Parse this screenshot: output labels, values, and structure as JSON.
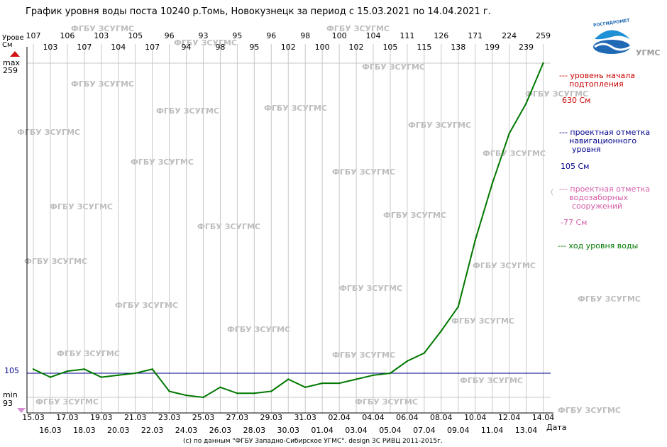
{
  "header": {
    "title": "График уровня воды поста 10240 р.Томь, Новокузнецк за период с 15.03.2021 по 14.04.2021 г."
  },
  "y_axis": {
    "title_line1": "Урове",
    "title_line2": "Cм",
    "max_label": "max",
    "max_value": "259",
    "min_label": "min",
    "min_value": "93",
    "ref_value": "105",
    "max_marker_color": "#d11414",
    "min_marker_color": "#d48fd4"
  },
  "x_axis": {
    "label": "Дата"
  },
  "logo": {
    "name": "РОСГИДРОМЕТ",
    "org": "УГМС",
    "colors": [
      "#1f69b5",
      "#1f8fd6"
    ]
  },
  "legend": {
    "flood_text_1": "--- уровень начала",
    "flood_text_2": "подтопления",
    "flood_value": "630 См",
    "flood_color": "#c80000",
    "nav_text_1": "--- проектная отметка",
    "nav_text_2": "навигационного",
    "nav_text_3": "уровня",
    "nav_value": "105 См",
    "nav_color": "#00008b",
    "intake_marker": "(",
    "intake_text_1": "--- проектная отметка",
    "intake_text_2": "водозаборных",
    "intake_text_3": "сооружений",
    "intake_value": "-77 См",
    "intake_color": "#d65fa8",
    "level_text": "--- ход уровня воды",
    "level_color": "#007800"
  },
  "watermark": {
    "text": "ФГБУ ЗСУГМС"
  },
  "footer": {
    "credit": "(с) по данным \"ФГБУ Западно-Сибирское УГМС\". design ЗС РИВЦ 2011-2015г."
  },
  "chart_data": {
    "type": "line",
    "title": "График уровня воды поста 10240 р.Томь, Новокузнецк за период с 15.03.2021 по 14.04.2021 г.",
    "ylabel": "Cм",
    "xlabel": "Дата",
    "ylim": [
      93,
      259
    ],
    "grid": true,
    "categories": [
      "15.03",
      "16.03",
      "17.03",
      "18.03",
      "19.03",
      "20.03",
      "21.03",
      "22.03",
      "23.03",
      "24.03",
      "25.03",
      "26.03",
      "27.03",
      "28.03",
      "29.03",
      "30.03",
      "31.03",
      "01.04",
      "02.04",
      "03.04",
      "04.04",
      "05.04",
      "06.04",
      "07.04",
      "08.04",
      "09.04",
      "10.04",
      "11.04",
      "12.04",
      "13.04",
      "14.04"
    ],
    "series": [
      {
        "name": "ход уровня воды",
        "color": "#007800",
        "values": [
          107,
          103,
          106,
          107,
          103,
          104,
          105,
          107,
          96,
          94,
          93,
          98,
          95,
          95,
          96,
          102,
          98,
          100,
          100,
          102,
          104,
          105,
          111,
          115,
          126,
          138,
          171,
          199,
          224,
          239,
          259
        ]
      }
    ],
    "reference_lines": [
      {
        "name": "проектная отметка навигационного уровня",
        "value": 105,
        "color": "#00008b"
      }
    ]
  }
}
